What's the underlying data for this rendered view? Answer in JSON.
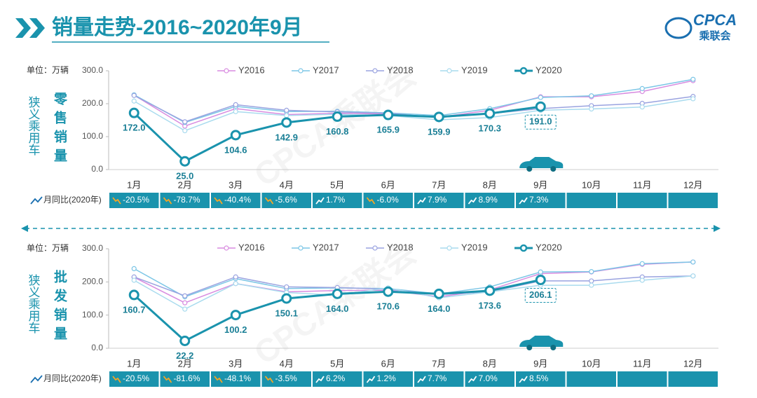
{
  "header": {
    "title": "销量走势-2016~2020年9月",
    "logo": "CPCA",
    "logo_sub": "乘联会"
  },
  "chart_data": [
    {
      "type": "line",
      "unit_label": "单位：万辆",
      "side_label": "狭义乘用车",
      "panel_label": "零售销量",
      "watermark": "CPCA乘联会",
      "categories": [
        "1月",
        "2月",
        "3月",
        "4月",
        "5月",
        "6月",
        "7月",
        "8月",
        "9月",
        "10月",
        "11月",
        "12月"
      ],
      "ylim": [
        0,
        300
      ],
      "yticks": [
        {
          "value": 0,
          "label": "0.0"
        },
        {
          "value": 100,
          "label": "100.0"
        },
        {
          "value": 200,
          "label": "200.0"
        },
        {
          "value": 300,
          "label": "300.0"
        }
      ],
      "series": [
        {
          "name": "Y2016",
          "color": "#d88ce0",
          "values": [
            226,
            132,
            185,
            167,
            171,
            169,
            159,
            180,
            221,
            221,
            237,
            270
          ]
        },
        {
          "name": "Y2017",
          "color": "#7cc6e6",
          "values": [
            227,
            143,
            192,
            176,
            177,
            172,
            164,
            185,
            219,
            224,
            246,
            274
          ]
        },
        {
          "name": "Y2018",
          "color": "#9aa3e0",
          "values": [
            225,
            145,
            197,
            180,
            175,
            171,
            158,
            170,
            185,
            194,
            201,
            222
          ]
        },
        {
          "name": "Y2019",
          "color": "#a9dbee",
          "values": [
            208,
            118,
            176,
            164,
            168,
            164,
            151,
            158,
            180,
            184,
            190,
            215
          ]
        },
        {
          "name": "Y2020",
          "color": "#1a93ad",
          "values": [
            172.0,
            25.0,
            104.6,
            142.9,
            160.8,
            165.9,
            159.9,
            170.3,
            191.0,
            null,
            null,
            null
          ],
          "value_labels": [
            "172.0",
            "25.0",
            "104.6",
            "142.9",
            "160.8",
            "165.9",
            "159.9",
            "170.3",
            "191.0",
            null,
            null,
            null
          ]
        }
      ],
      "yoy_label": "月同比(2020年)",
      "yoy": [
        "-20.5%",
        "-78.7%",
        "-40.4%",
        "-5.6%",
        "1.7%",
        "-6.0%",
        "7.9%",
        "8.9%",
        "7.3%"
      ]
    },
    {
      "type": "line",
      "unit_label": "单位：万辆",
      "side_label": "狭义乘用车",
      "panel_label": "批发销量",
      "watermark": "CPCA乘联会",
      "categories": [
        "1月",
        "2月",
        "3月",
        "4月",
        "5月",
        "6月",
        "7月",
        "8月",
        "9月",
        "10月",
        "11月",
        "12月"
      ],
      "ylim": [
        0,
        300
      ],
      "yticks": [
        {
          "value": 0,
          "label": "0.0"
        },
        {
          "value": 100,
          "label": "100.0"
        },
        {
          "value": 200,
          "label": "200.0"
        },
        {
          "value": 300,
          "label": "300.0"
        }
      ],
      "series": [
        {
          "name": "Y2016",
          "color": "#d88ce0",
          "values": [
            214,
            137,
            195,
            170,
            174,
            175,
            155,
            176,
            225,
            230,
            253,
            260
          ]
        },
        {
          "name": "Y2017",
          "color": "#7cc6e6",
          "values": [
            240,
            155,
            210,
            180,
            182,
            180,
            164,
            185,
            230,
            231,
            255,
            260
          ]
        },
        {
          "name": "Y2018",
          "color": "#9aa3e0",
          "values": [
            215,
            158,
            215,
            185,
            183,
            178,
            162,
            170,
            203,
            203,
            215,
            218
          ]
        },
        {
          "name": "Y2019",
          "color": "#a9dbee",
          "values": [
            205,
            118,
            195,
            168,
            160,
            182,
            152,
            170,
            190,
            190,
            205,
            218
          ]
        },
        {
          "name": "Y2020",
          "color": "#1a93ad",
          "values": [
            160.7,
            22.2,
            100.2,
            150.1,
            164.0,
            170.6,
            164.0,
            173.6,
            206.1,
            null,
            null,
            null
          ],
          "value_labels": [
            "160.7",
            "22.2",
            "100.2",
            "150.1",
            "164.0",
            "170.6",
            "164.0",
            "173.6",
            "206.1",
            null,
            null,
            null
          ]
        }
      ],
      "yoy_label": "月同比(2020年)",
      "yoy": [
        "-20.5%",
        "-81.6%",
        "-48.1%",
        "-3.5%",
        "6.2%",
        "1.2%",
        "7.7%",
        "7.0%",
        "8.5%"
      ]
    }
  ]
}
